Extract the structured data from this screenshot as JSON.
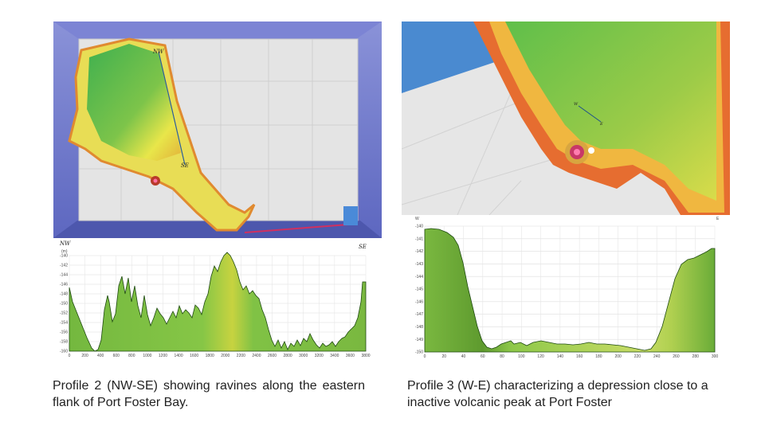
{
  "left_figure": {
    "map_labels": {
      "start": "NW",
      "mid": "SE"
    },
    "profile": {
      "start_label": "NW",
      "end_label": "SE",
      "unit": "(m)",
      "x_unit": "(m)",
      "y_ticks": [
        "-140",
        "-142",
        "-144",
        "-146",
        "-148",
        "-150",
        "-152",
        "-154",
        "-156",
        "-158",
        "-160"
      ],
      "x_ticks": [
        "0",
        "200",
        "400",
        "600",
        "800",
        "1000",
        "1200",
        "1400",
        "1600",
        "1800",
        "2000",
        "2200",
        "2400",
        "2600",
        "2800",
        "3000",
        "3200",
        "3400",
        "3600",
        "3800"
      ]
    },
    "caption": "Profile 2 (NW-SE) showing ravines along the eastern flank of Port Foster Bay."
  },
  "right_figure": {
    "map_labels": {
      "start": "W",
      "end": "E"
    },
    "profile": {
      "start_label": "W",
      "end_label": "E",
      "y_ticks": [
        "-140",
        "-141",
        "-142",
        "-143",
        "-144",
        "-145",
        "-146",
        "-147",
        "-148",
        "-149",
        "-150"
      ],
      "x_ticks": [
        "0",
        "20",
        "40",
        "60",
        "80",
        "100",
        "120",
        "140",
        "160",
        "180",
        "200",
        "220",
        "240",
        "260",
        "280",
        "300"
      ]
    },
    "caption": "Profile 3 (W-E) characterizing a depression close to a inactive volcanic peak at Port Foster"
  },
  "colors": {
    "profile_fill_green": "#7cc242",
    "profile_fill_yellow": "#d8dc3a",
    "map_green": "#5cb85c",
    "map_yellow": "#f2e94e",
    "map_orange": "#f0a040",
    "frame_blue": "#6a74c8"
  }
}
